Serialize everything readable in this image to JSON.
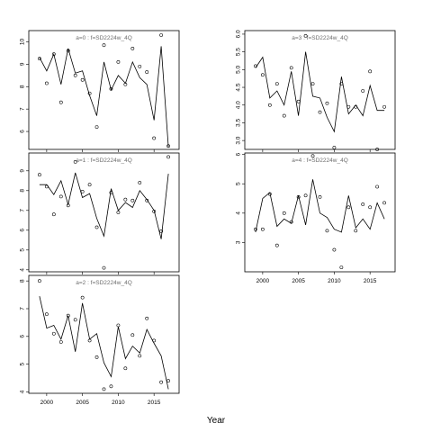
{
  "figure": {
    "xlabel": "Year"
  },
  "chart_data": [
    {
      "type": "line",
      "title": "a=0 : f=SD2224w_4Q",
      "x_ticks": [
        2000,
        2005,
        2010,
        2015
      ],
      "y_ticks": [
        6,
        7,
        8,
        9,
        10
      ],
      "y_tick_labels": [
        "6",
        "7",
        "8",
        "9",
        "10"
      ],
      "show_x_tick_labels": false,
      "ylim": [
        5.2,
        10.5
      ],
      "series": [
        {
          "kind": "points",
          "x": [
            1999,
            2000,
            2001,
            2002,
            2003,
            2004,
            2005,
            2006,
            2007,
            2008,
            2009,
            2010,
            2011,
            2012,
            2013,
            2014,
            2015,
            2016,
            2017
          ],
          "y": [
            9.25,
            8.15,
            9.45,
            7.3,
            9.6,
            8.5,
            8.3,
            7.7,
            6.2,
            9.85,
            7.9,
            9.1,
            8.1,
            9.7,
            8.9,
            8.65,
            5.7,
            10.3,
            5.35
          ]
        },
        {
          "kind": "line",
          "x": [
            1999,
            2000,
            2001,
            2002,
            2003,
            2004,
            2005,
            2006,
            2007,
            2008,
            2009,
            2010,
            2011,
            2012,
            2013,
            2014,
            2015,
            2016,
            2017
          ],
          "y": [
            9.3,
            8.7,
            9.45,
            8.1,
            9.7,
            8.6,
            8.7,
            7.6,
            6.7,
            9.1,
            7.85,
            8.5,
            8.15,
            9.1,
            8.4,
            8.1,
            6.5,
            9.8,
            5.3
          ]
        }
      ]
    },
    {
      "type": "line",
      "title": "a=1 : f=SD2224w_4Q",
      "x_ticks": [
        2000,
        2005,
        2010,
        2015
      ],
      "y_ticks": [
        4,
        5,
        6,
        7,
        8,
        9
      ],
      "y_tick_labels": [
        "4",
        "5",
        "6",
        "7",
        "8",
        "9"
      ],
      "show_x_tick_labels": false,
      "ylim": [
        3.9,
        9.9
      ],
      "series": [
        {
          "kind": "points",
          "x": [
            1999,
            2000,
            2001,
            2002,
            2003,
            2004,
            2005,
            2006,
            2007,
            2008,
            2009,
            2010,
            2011,
            2012,
            2013,
            2014,
            2015,
            2016,
            2017
          ],
          "y": [
            8.8,
            8.2,
            6.8,
            7.7,
            7.25,
            9.45,
            7.95,
            8.3,
            6.15,
            4.1,
            7.9,
            6.9,
            7.55,
            7.5,
            8.4,
            7.5,
            6.95,
            5.95,
            9.7
          ]
        },
        {
          "kind": "line",
          "x": [
            1999,
            2000,
            2001,
            2002,
            2003,
            2004,
            2005,
            2006,
            2007,
            2008,
            2009,
            2010,
            2011,
            2012,
            2013,
            2014,
            2015,
            2016,
            2017
          ],
          "y": [
            8.3,
            8.3,
            7.8,
            8.5,
            7.3,
            8.9,
            7.65,
            7.85,
            6.6,
            5.7,
            8.1,
            7.0,
            7.4,
            7.15,
            8.0,
            7.55,
            7.0,
            5.55,
            8.85
          ]
        }
      ]
    },
    {
      "type": "line",
      "title": "a=2 : f=SD2224w_4Q",
      "x_ticks": [
        2000,
        2005,
        2010,
        2015
      ],
      "y_ticks": [
        4,
        5,
        6,
        7,
        8
      ],
      "y_tick_labels": [
        "4",
        "5",
        "6",
        "7",
        "8"
      ],
      "x_tick_labels": [
        "2000",
        "2005",
        "2010",
        "2015"
      ],
      "show_x_tick_labels": true,
      "ylim": [
        3.95,
        8.2
      ],
      "series": [
        {
          "kind": "points",
          "x": [
            1999,
            2000,
            2001,
            2002,
            2003,
            2004,
            2005,
            2006,
            2007,
            2008,
            2009,
            2010,
            2011,
            2012,
            2013,
            2014,
            2015,
            2016,
            2017
          ],
          "y": [
            8.0,
            6.8,
            6.1,
            5.8,
            6.75,
            6.6,
            7.4,
            5.85,
            5.25,
            4.1,
            4.2,
            6.4,
            4.85,
            6.05,
            5.3,
            6.65,
            5.85,
            4.35,
            4.4
          ]
        },
        {
          "kind": "line",
          "x": [
            1999,
            2000,
            2001,
            2002,
            2003,
            2004,
            2005,
            2006,
            2007,
            2008,
            2009,
            2010,
            2011,
            2012,
            2013,
            2014,
            2015,
            2016,
            2017
          ],
          "y": [
            7.45,
            6.3,
            6.4,
            5.9,
            6.75,
            5.45,
            7.2,
            5.9,
            6.1,
            5.05,
            4.55,
            6.35,
            5.2,
            5.65,
            5.4,
            6.25,
            5.75,
            5.3,
            4.1
          ]
        }
      ]
    },
    {
      "type": "line",
      "title": "a=3 : f=SD2224w_4Q",
      "x_ticks": [
        2000,
        2005,
        2010,
        2015
      ],
      "y_ticks": [
        3.0,
        3.5,
        4.0,
        4.5,
        5.0,
        5.5,
        6.0
      ],
      "y_tick_labels": [
        "3.0",
        "3.5",
        "4.0",
        "4.5",
        "5.0",
        "5.5",
        "6.0"
      ],
      "show_x_tick_labels": false,
      "ylim": [
        2.75,
        6.1
      ],
      "series": [
        {
          "kind": "points",
          "x": [
            1999,
            2000,
            2001,
            2002,
            2003,
            2004,
            2005,
            2006,
            2007,
            2008,
            2009,
            2010,
            2011,
            2012,
            2013,
            2014,
            2015,
            2016,
            2017
          ],
          "y": [
            5.1,
            4.85,
            4.0,
            4.6,
            3.7,
            5.05,
            4.1,
            5.95,
            4.6,
            3.8,
            4.05,
            2.8,
            4.6,
            3.95,
            3.95,
            4.4,
            4.95,
            2.75,
            3.95
          ]
        },
        {
          "kind": "line",
          "x": [
            1999,
            2000,
            2001,
            2002,
            2003,
            2004,
            2005,
            2006,
            2007,
            2008,
            2009,
            2010,
            2011,
            2012,
            2013,
            2014,
            2015,
            2016,
            2017
          ],
          "y": [
            5.05,
            5.35,
            4.2,
            4.4,
            4.0,
            4.95,
            3.7,
            5.5,
            4.25,
            4.2,
            3.65,
            3.25,
            4.8,
            3.75,
            4.0,
            3.7,
            4.55,
            3.85,
            3.85
          ]
        }
      ]
    },
    {
      "type": "line",
      "title": "a=4 : f=SD2224w_4Q",
      "x_ticks": [
        2000,
        2005,
        2010,
        2015
      ],
      "y_ticks": [
        3,
        4,
        5,
        6
      ],
      "y_tick_labels": [
        "3",
        "4",
        "5",
        "6"
      ],
      "x_tick_labels": [
        "2000",
        "2005",
        "2010",
        "2015"
      ],
      "show_x_tick_labels": true,
      "ylim": [
        2.0,
        6.05
      ],
      "series": [
        {
          "kind": "points",
          "x": [
            1999,
            2000,
            2001,
            2002,
            2003,
            2004,
            2005,
            2006,
            2007,
            2008,
            2009,
            2010,
            2011,
            2012,
            2013,
            2014,
            2015,
            2016,
            2017
          ],
          "y": [
            3.45,
            3.45,
            4.65,
            2.9,
            4.0,
            3.7,
            4.55,
            4.6,
            5.95,
            4.55,
            3.4,
            2.75,
            2.15,
            4.2,
            3.4,
            4.3,
            4.2,
            4.9,
            4.35
          ]
        },
        {
          "kind": "line",
          "x": [
            1999,
            2000,
            2001,
            2002,
            2003,
            2004,
            2005,
            2006,
            2007,
            2008,
            2009,
            2010,
            2011,
            2012,
            2013,
            2014,
            2015,
            2016,
            2017
          ],
          "y": [
            3.35,
            4.5,
            4.7,
            3.55,
            3.8,
            3.65,
            4.6,
            3.6,
            5.15,
            4.0,
            3.85,
            3.45,
            3.35,
            4.6,
            3.5,
            3.8,
            3.45,
            4.35,
            3.8
          ]
        }
      ]
    }
  ]
}
